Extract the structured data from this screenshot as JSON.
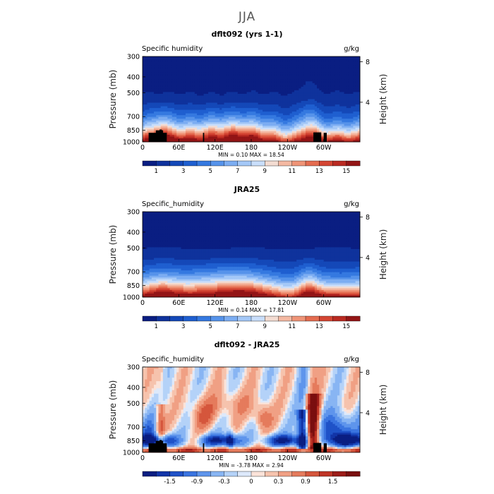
{
  "page_title": "JJA",
  "chart_data": [
    {
      "type": "heatmap",
      "title": "dflt092 (yrs 1-1)",
      "variable": "Specific humidity",
      "units": "g/kg",
      "xlabel": "",
      "ylabel": "Pressure (mb)",
      "y2label": "Height (km)",
      "xticks": [
        "0",
        "60E",
        "120E",
        "180",
        "120W",
        "60W"
      ],
      "yticks": [
        300,
        400,
        500,
        700,
        850,
        1000
      ],
      "y2ticks": [
        "8",
        "4"
      ],
      "ylim": [
        1000,
        300
      ],
      "xlim_deg": [
        0,
        360
      ],
      "stats": "MIN =    0.10  MAX =   18.54",
      "colorbar_labels": [
        "1",
        "3",
        "5",
        "7",
        "9",
        "11",
        "13",
        "15"
      ],
      "colorbar_levels": [
        0,
        1,
        2,
        3,
        4,
        5,
        6,
        7,
        8,
        9,
        10,
        11,
        12,
        13,
        14,
        15,
        16
      ],
      "colormap": "full",
      "field": "abs_model",
      "show_topography": true
    },
    {
      "type": "heatmap",
      "title": "JRA25",
      "variable": "Specific_humidity",
      "units": "g/kg",
      "xlabel": "",
      "ylabel": "Pressure (mb)",
      "y2label": "Height (km)",
      "xticks": [
        "0",
        "60E",
        "120E",
        "180",
        "120W",
        "60W"
      ],
      "yticks": [
        300,
        400,
        500,
        700,
        850,
        1000
      ],
      "y2ticks": [
        "8",
        "4"
      ],
      "ylim": [
        1000,
        300
      ],
      "xlim_deg": [
        0,
        360
      ],
      "stats": "MIN =    0.14  MAX =   17.81",
      "colorbar_labels": [
        "1",
        "3",
        "5",
        "7",
        "9",
        "11",
        "13",
        "15"
      ],
      "colorbar_levels": [
        0,
        1,
        2,
        3,
        4,
        5,
        6,
        7,
        8,
        9,
        10,
        11,
        12,
        13,
        14,
        15,
        16
      ],
      "colormap": "full",
      "field": "abs_obs",
      "show_topography": false
    },
    {
      "type": "heatmap",
      "title": "dflt092 - JRA25",
      "variable": "Specific_humidity",
      "units": "g/kg",
      "xlabel": "",
      "ylabel": "Pressure (mb)",
      "y2label": "Height (km)",
      "xticks": [
        "0",
        "60E",
        "120E",
        "180",
        "120W",
        "60W"
      ],
      "yticks": [
        300,
        400,
        500,
        700,
        850,
        1000
      ],
      "y2ticks": [
        "8",
        "4"
      ],
      "ylim": [
        1000,
        300
      ],
      "xlim_deg": [
        0,
        360
      ],
      "stats": "MIN =   -3.78  MAX =    2.94",
      "colorbar_labels": [
        "-1.5",
        "-0.9",
        "-0.3",
        "0",
        "0.3",
        "0.9",
        "1.5"
      ],
      "colorbar_levels": [
        -2.1,
        -1.8,
        -1.5,
        -1.2,
        -0.9,
        -0.6,
        -0.3,
        -0.1,
        0,
        0.1,
        0.3,
        0.6,
        0.9,
        1.2,
        1.5,
        1.8,
        2.1
      ],
      "colormap": "diff",
      "field": "diff",
      "show_topography": true
    }
  ],
  "colors": {
    "full_scale": [
      "#0a1e82",
      "#0f329c",
      "#1448b8",
      "#1f5fd0",
      "#3579e0",
      "#5693ea",
      "#7cadf2",
      "#a4c8f7",
      "#c9defb",
      "#f3dcd2",
      "#f4b9a2",
      "#ef9477",
      "#e46c50",
      "#d44533",
      "#ba2a22",
      "#931516"
    ],
    "diff_scale": [
      "#0a1e82",
      "#1235a8",
      "#1f52c8",
      "#3a74e0",
      "#5e95ec",
      "#88b5f3",
      "#b4d2f8",
      "#dde9fb",
      "#fbe3d9",
      "#f6c3ad",
      "#f0a084",
      "#e57b5c",
      "#d5563c",
      "#bf3526",
      "#9c1c18",
      "#7a0f0f"
    ],
    "topography": "#000000"
  }
}
